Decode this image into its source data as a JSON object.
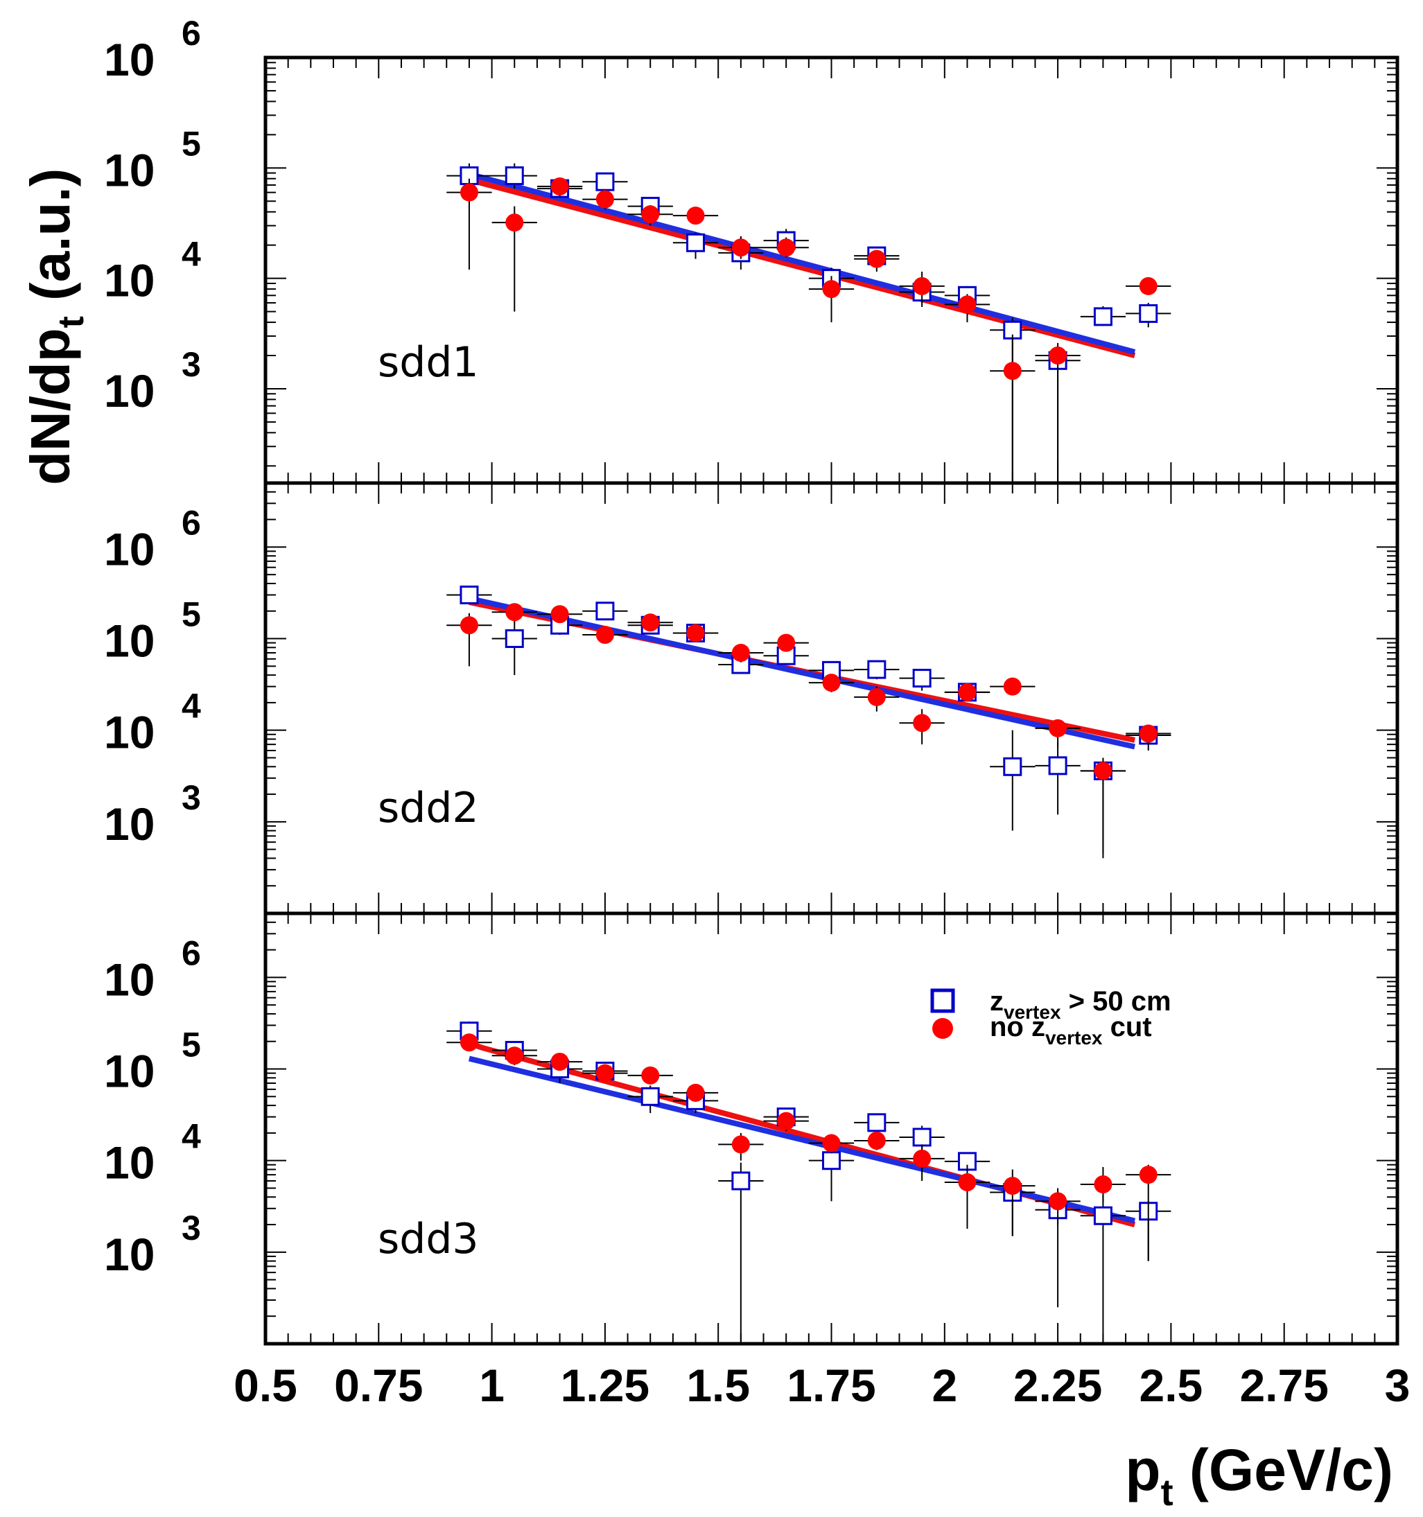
{
  "chart_data": {
    "type": "scatter",
    "y_scale": "log",
    "x_axis": {
      "title_main": "p",
      "title_sub": "t",
      "title_rest": " (GeV/c)",
      "range": [
        0.5,
        3
      ],
      "tick_labels": [
        "0.5",
        "0.75",
        "1",
        "1.25",
        "1.5",
        "1.75",
        "2",
        "2.25",
        "2.5",
        "2.75",
        "3"
      ]
    },
    "y_axis": {
      "title_main": "dN/dp",
      "title_sub": "t",
      "title_rest": " (a.u.)",
      "decade_base": "10",
      "decade_exponents": [
        "3",
        "4",
        "5",
        "6"
      ]
    },
    "legend": {
      "placement": "upper-right of bottom panel",
      "entries": [
        {
          "marker": "open-square",
          "color": "#0000cc",
          "text_main": "z",
          "text_sub": "vertex",
          "text_rest": " > 50 cm"
        },
        {
          "marker": "filled-circle",
          "color": "#ff0000",
          "text_pre": "no z",
          "text_sub": "vertex",
          "text_rest": " cut"
        }
      ]
    },
    "colors": {
      "zcut": "#0000cc",
      "nocut": "#ff0000",
      "fit_zcut": "#1f2fe0",
      "fit_nocut": "#ee1010"
    },
    "x_bins": [
      0.95,
      1.05,
      1.15,
      1.25,
      1.35,
      1.45,
      1.55,
      1.65,
      1.75,
      1.85,
      1.95,
      2.05,
      2.15,
      2.25,
      2.35,
      2.45
    ],
    "x_bin_half_width": 0.05,
    "panels": [
      {
        "label": "sdd1",
        "ylim": [
          140,
          1000000
        ],
        "series": [
          {
            "name": "zvertex > 50 cm",
            "values": [
              85000,
              85000,
              65000,
              75000,
              45000,
              21000,
              17000,
              22000,
              10000,
              16000,
              7500,
              7000,
              3400,
              1800,
              4500,
              4800
            ],
            "err_low": [
              65000,
              65000,
              55000,
              62000,
              39000,
              15000,
              12000,
              18000,
              6000,
              12500,
              5500,
              5600,
              null,
              null,
              3700,
              3600
            ],
            "err_high": [
              110000,
              110000,
              75000,
              90000,
              52000,
              26000,
              24000,
              28000,
              12500,
              19000,
              9500,
              8500,
              4400,
              2300,
              5600,
              6000
            ]
          },
          {
            "name": "no zvertex cut",
            "values": [
              60000,
              32000,
              68000,
              52000,
              38000,
              37000,
              19000,
              19000,
              8000,
              15000,
              8500,
              5800,
              1450,
              2000,
              null,
              8500
            ],
            "err_low": [
              12000,
              5000,
              55000,
              42000,
              30000,
              32000,
              15000,
              15500,
              4000,
              11500,
              6000,
              4000,
              null,
              null,
              null,
              7400
            ],
            "err_high": [
              80000,
              45000,
              78000,
              62000,
              46000,
              43000,
              24000,
              23500,
              10500,
              18000,
              11500,
              7200,
              3100,
              2600,
              null,
              9500
            ]
          }
        ],
        "fits": [
          {
            "name": "fit no zvertex cut",
            "x": [
              0.95,
              2.42
            ],
            "y": [
              78000,
              2000
            ]
          },
          {
            "name": "fit zvertex > 50 cm",
            "x": [
              0.95,
              2.42
            ],
            "y": [
              88000,
              2150
            ]
          }
        ]
      },
      {
        "label": "sdd2",
        "ylim": [
          100,
          5000000
        ],
        "series": [
          {
            "name": "zvertex > 50 cm",
            "values": [
              300000,
              100000,
              140000,
              200000,
              140000,
              115000,
              52000,
              65000,
              45000,
              46000,
              37000,
              26000,
              4000,
              4100,
              3600,
              8800
            ],
            "err_low": [
              260000,
              40000,
              110000,
              160000,
              115000,
              95000,
              44000,
              52000,
              32000,
              36000,
              27000,
              23000,
              800,
              1200,
              450,
              6000
            ],
            "err_high": [
              350000,
              160000,
              165000,
              240000,
              165000,
              135000,
              62000,
              78000,
              55000,
              56000,
              44000,
              30000,
              10000,
              7500,
              null,
              10500
            ]
          },
          {
            "name": "no zvertex cut",
            "values": [
              140000,
              195000,
              185000,
              110000,
              150000,
              115000,
              70000,
              90000,
              33000,
              23000,
              12000,
              26000,
              30000,
              10500,
              3600,
              9200
            ],
            "err_low": [
              50000,
              150000,
              160000,
              90000,
              120000,
              95000,
              55000,
              75000,
              26000,
              16000,
              7000,
              21000,
              26000,
              6500,
              400,
              7000
            ],
            "err_high": [
              190000,
              240000,
              215000,
              135000,
              175000,
              135000,
              85000,
              105000,
              40000,
              30000,
              17000,
              31000,
              34000,
              12000,
              5000,
              11500
            ]
          }
        ],
        "fits": [
          {
            "name": "fit no zvertex cut",
            "x": [
              0.95,
              2.42
            ],
            "y": [
              250000,
              7800
            ]
          },
          {
            "name": "fit zvertex > 50 cm",
            "x": [
              0.95,
              2.42
            ],
            "y": [
              275000,
              6600
            ]
          }
        ]
      },
      {
        "label": "sdd3",
        "ylim": [
          100,
          5000000
        ],
        "series": [
          {
            "name": "zvertex > 50 cm",
            "values": [
              260000,
              160000,
              100000,
              95000,
              50000,
              45000,
              6000,
              30000,
              10000,
              26000,
              18000,
              9800,
              4500,
              2900,
              2500,
              2800
            ],
            "err_low": [
              200000,
              110000,
              70000,
              75000,
              33000,
              33000,
              null,
              24000,
              3600,
              21000,
              12000,
              7800,
              1500,
              250,
              null,
              800
            ],
            "err_high": [
              330000,
              200000,
              130000,
              120000,
              66000,
              58000,
              9500,
              36000,
              14000,
              31000,
              24000,
              12000,
              6000,
              4500,
              4200,
              3600
            ]
          },
          {
            "name": "no zvertex cut",
            "values": [
              195000,
              140000,
              120000,
              90000,
              85000,
              55000,
              15000,
              27000,
              15500,
              16500,
              10500,
              5800,
              5300,
              3600,
              5500,
              7000
            ],
            "err_low": [
              160000,
              115000,
              100000,
              75000,
              70000,
              44000,
              10000,
              21000,
              12000,
              13000,
              6000,
              1800,
              1500,
              2000,
              3500,
              800
            ],
            "err_high": [
              230000,
              165000,
              145000,
              105000,
              100000,
              66000,
              20000,
              33000,
              19000,
              20000,
              15000,
              9000,
              8000,
              5000,
              8500,
              9000
            ]
          }
        ],
        "fits": [
          {
            "name": "fit no zvertex cut",
            "x": [
              0.95,
              0.98,
              2.42
            ],
            "y": [
              190000,
              170000,
              2000
            ]
          },
          {
            "name": "fit zvertex > 50 cm",
            "x": [
              0.95,
              2.42
            ],
            "y": [
              130000,
              2200
            ]
          }
        ]
      }
    ]
  }
}
